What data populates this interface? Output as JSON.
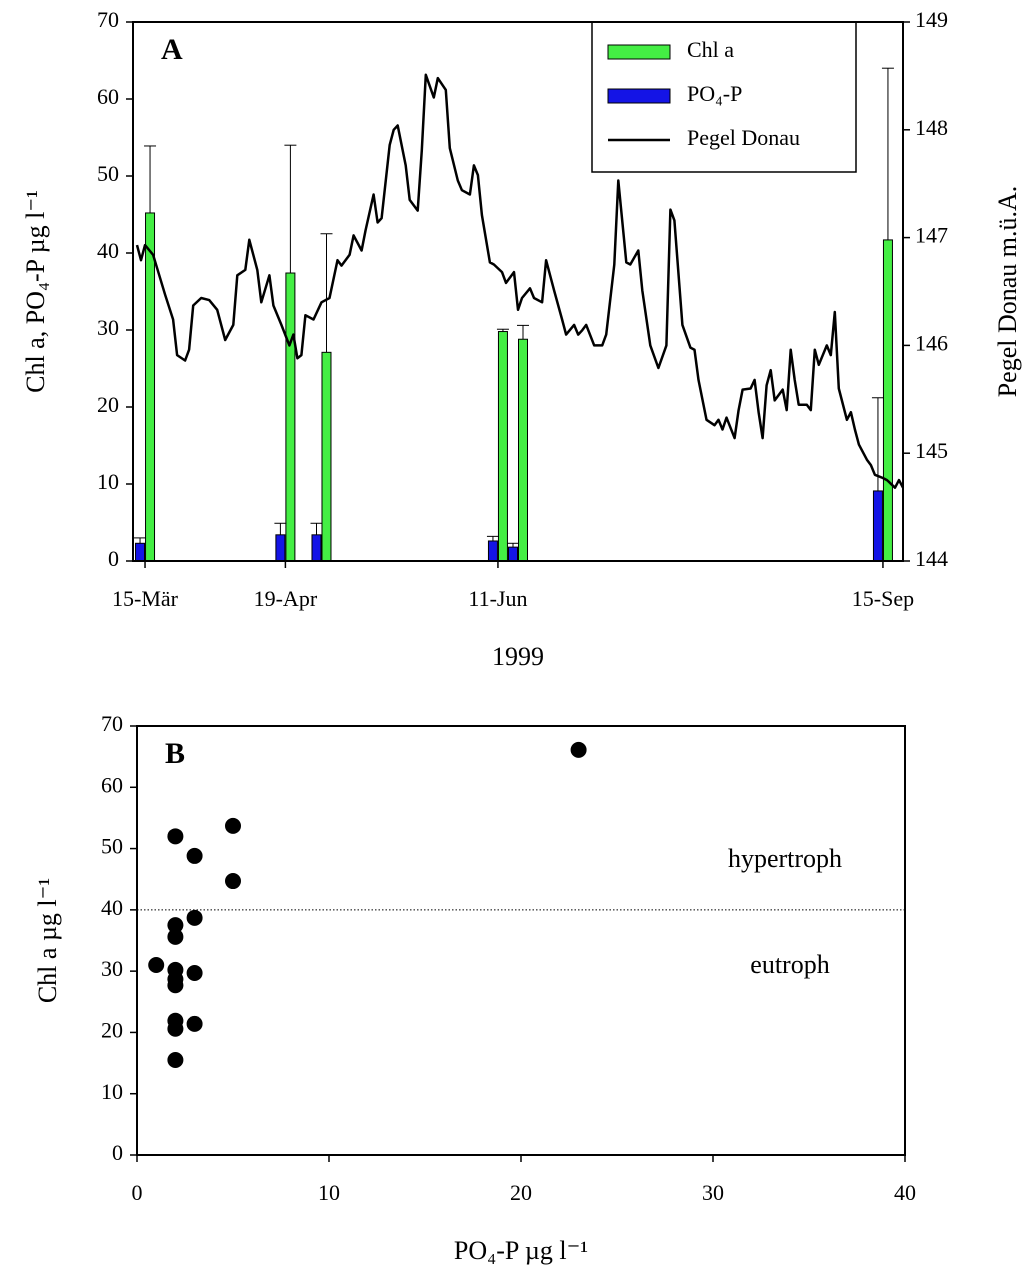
{
  "chart_data": [
    {
      "type": "combo",
      "panel_label": "A",
      "xlabel": "1999",
      "ylabel": "Chl a, PO₄-P µg l⁻¹",
      "y2label": "Pegel Donau m.ü.A.",
      "xlim": [
        "1999-03-12",
        "1999-09-20"
      ],
      "xticks": [
        {
          "value": "1999-03-15",
          "label": "15-Mär"
        },
        {
          "value": "1999-04-19",
          "label": "19-Apr"
        },
        {
          "value": "1999-06-11",
          "label": "11-Jun"
        },
        {
          "value": "1999-09-15",
          "label": "15-Sep"
        }
      ],
      "ylim": [
        0,
        70
      ],
      "yticks": [
        0,
        10,
        20,
        30,
        40,
        50,
        60,
        70
      ],
      "y2lim": [
        144,
        149
      ],
      "y2ticks": [
        144,
        145,
        146,
        147,
        148,
        149
      ],
      "legend": "upper right",
      "series": [
        {
          "name": "Chl a",
          "type": "bar",
          "color": "#44ee44",
          "x": [
            "1999-03-15",
            "1999-04-19",
            "1999-04-28",
            "1999-06-11",
            "1999-06-16",
            "1999-09-15"
          ],
          "values": [
            45.2,
            37.4,
            27.1,
            29.8,
            28.8,
            41.7
          ],
          "errors": [
            8.7,
            16.6,
            15.4,
            0.3,
            1.8,
            22.3
          ]
        },
        {
          "name": "PO₄-P",
          "type": "bar",
          "color": "#1414e6",
          "x": [
            "1999-03-15",
            "1999-04-19",
            "1999-04-28",
            "1999-06-11",
            "1999-06-16",
            "1999-09-15"
          ],
          "values": [
            2.3,
            3.4,
            3.4,
            2.6,
            1.8,
            9.1
          ],
          "errors": [
            0.7,
            1.5,
            1.5,
            0.6,
            0.5,
            12.1
          ]
        },
        {
          "name": "Pegel Donau",
          "type": "line",
          "axis": "y2",
          "color": "#000000",
          "x": [
            "1999-03-13",
            "1999-03-14",
            "1999-03-15",
            "1999-03-17",
            "1999-03-20",
            "1999-03-22",
            "1999-03-23",
            "1999-03-25",
            "1999-03-26",
            "1999-03-27",
            "1999-03-29",
            "1999-03-31",
            "1999-04-02",
            "1999-04-04",
            "1999-04-06",
            "1999-04-07",
            "1999-04-09",
            "1999-04-10",
            "1999-04-12",
            "1999-04-13",
            "1999-04-15",
            "1999-04-16",
            "1999-04-18",
            "1999-04-20",
            "1999-04-21",
            "1999-04-22",
            "1999-04-23",
            "1999-04-24",
            "1999-04-26",
            "1999-04-28",
            "1999-04-30",
            "1999-05-02",
            "1999-05-03",
            "1999-05-05",
            "1999-05-06",
            "1999-05-08",
            "1999-05-09",
            "1999-05-11",
            "1999-05-12",
            "1999-05-13",
            "1999-05-15",
            "1999-05-16",
            "1999-05-17",
            "1999-05-19",
            "1999-05-20",
            "1999-05-22",
            "1999-05-23",
            "1999-05-24",
            "1999-05-26",
            "1999-05-27",
            "1999-05-29",
            "1999-05-30",
            "1999-06-01",
            "1999-06-02",
            "1999-06-04",
            "1999-06-05",
            "1999-06-06",
            "1999-06-07",
            "1999-06-09",
            "1999-06-10",
            "1999-06-12",
            "1999-06-13",
            "1999-06-15",
            "1999-06-16",
            "1999-06-17",
            "1999-06-19",
            "1999-06-20",
            "1999-06-22",
            "1999-06-23",
            "1999-06-25",
            "1999-06-27",
            "1999-06-28",
            "1999-06-30",
            "1999-07-01",
            "1999-07-02",
            "1999-07-03",
            "1999-07-05",
            "1999-07-07",
            "1999-07-08",
            "1999-07-10",
            "1999-07-11",
            "1999-07-13",
            "1999-07-14",
            "1999-07-16",
            "1999-07-17",
            "1999-07-19",
            "1999-07-21",
            "1999-07-23",
            "1999-07-24",
            "1999-07-25",
            "1999-07-27",
            "1999-07-29",
            "1999-07-30",
            "1999-07-31",
            "1999-08-02",
            "1999-08-04",
            "1999-08-05",
            "1999-08-06",
            "1999-08-07",
            "1999-08-09",
            "1999-08-10",
            "1999-08-11",
            "1999-08-13",
            "1999-08-14",
            "1999-08-15",
            "1999-08-16",
            "1999-08-17",
            "1999-08-18",
            "1999-08-19",
            "1999-08-21",
            "1999-08-22",
            "1999-08-23",
            "1999-08-24",
            "1999-08-25",
            "1999-08-27",
            "1999-08-28",
            "1999-08-29",
            "1999-08-30",
            "1999-09-01",
            "1999-09-02",
            "1999-09-03",
            "1999-09-04",
            "1999-09-06",
            "1999-09-07",
            "1999-09-08",
            "1999-09-09",
            "1999-09-11",
            "1999-09-12",
            "1999-09-13",
            "1999-09-15",
            "1999-09-16",
            "1999-09-18",
            "1999-09-19",
            "1999-09-20"
          ],
          "values": [
            146.93,
            146.79,
            146.93,
            146.84,
            146.47,
            146.24,
            145.91,
            145.86,
            145.96,
            146.37,
            146.44,
            146.42,
            146.33,
            146.05,
            146.19,
            146.65,
            146.7,
            146.98,
            146.7,
            146.4,
            146.65,
            146.37,
            146.19,
            146.0,
            146.1,
            145.88,
            145.91,
            146.28,
            146.24,
            146.4,
            146.44,
            146.79,
            146.74,
            146.84,
            147.02,
            146.88,
            147.07,
            147.4,
            147.14,
            147.18,
            147.86,
            148.0,
            148.04,
            147.67,
            147.35,
            147.25,
            147.81,
            148.51,
            148.3,
            148.48,
            148.37,
            147.83,
            147.53,
            147.44,
            147.4,
            147.67,
            147.58,
            147.21,
            146.77,
            146.75,
            146.68,
            146.58,
            146.68,
            146.33,
            146.44,
            146.53,
            146.44,
            146.4,
            146.79,
            146.51,
            146.24,
            146.1,
            146.19,
            146.1,
            146.14,
            146.19,
            146.0,
            146.0,
            146.1,
            146.75,
            147.53,
            146.77,
            146.75,
            146.88,
            146.51,
            146.0,
            145.79,
            146.0,
            147.26,
            147.16,
            146.19,
            145.98,
            145.96,
            145.68,
            145.31,
            145.26,
            145.31,
            145.22,
            145.33,
            145.14,
            145.4,
            145.59,
            145.6,
            145.68,
            145.38,
            145.14,
            145.63,
            145.77,
            145.49,
            145.59,
            145.4,
            145.96,
            145.68,
            145.45,
            145.45,
            145.4,
            145.96,
            145.82,
            146.0,
            145.91,
            146.31,
            145.6,
            145.31,
            145.38,
            145.22,
            145.08,
            144.94,
            144.89,
            144.8,
            144.77,
            144.75,
            144.68,
            144.75,
            144.68
          ]
        }
      ]
    },
    {
      "type": "scatter",
      "panel_label": "B",
      "xlabel": "PO₄-P µg l⁻¹",
      "ylabel": "Chl a µg l⁻¹",
      "xlim": [
        0,
        40
      ],
      "xticks": [
        0,
        10,
        20,
        30,
        40
      ],
      "ylim": [
        0,
        70
      ],
      "yticks": [
        0,
        10,
        20,
        30,
        40,
        50,
        60,
        70
      ],
      "color": "#000000",
      "hline": 40,
      "annotations": [
        "hypertroph",
        "eutroph"
      ],
      "x": [
        1,
        2,
        2,
        2,
        2,
        2,
        2,
        2,
        2,
        2,
        3,
        3,
        3,
        3,
        5,
        5,
        23
      ],
      "values": [
        31.0,
        52.0,
        37.5,
        35.6,
        30.2,
        28.7,
        27.7,
        21.9,
        20.6,
        15.5,
        48.8,
        38.7,
        29.7,
        21.4,
        53.7,
        44.7,
        66.1
      ]
    }
  ]
}
